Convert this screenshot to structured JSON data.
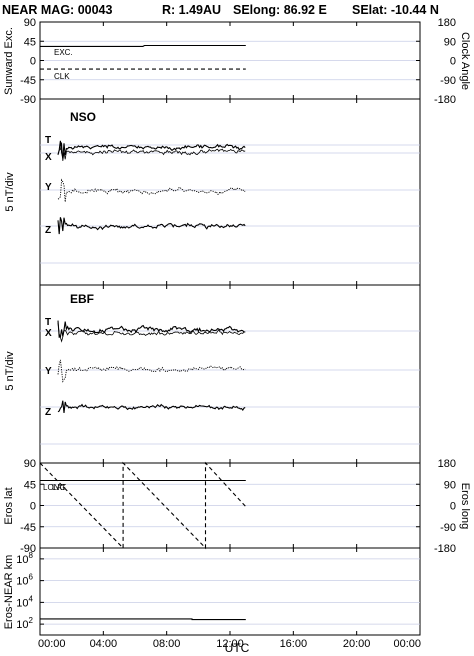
{
  "header": {
    "title": "NEAR MAG: 00043",
    "distance": "R: 1.49AU",
    "selong": "SElong:   86.92 E",
    "selat": "SElat:  -10.44 N"
  },
  "x_axis": {
    "label": "UTC",
    "ticks": [
      "00:00",
      "04:00",
      "08:00",
      "12:00",
      "16:00",
      "20:00",
      "00:00"
    ],
    "range_hours": [
      0,
      24
    ],
    "data_end_hour": 13.0
  },
  "panels": {
    "excursion": {
      "left_label": "Sunward Exc.",
      "right_label": "Clock Angle",
      "left_ticks": [
        "90",
        "45",
        "0",
        "-45",
        "-90"
      ],
      "right_ticks": [
        "180",
        "90",
        "0",
        "-90",
        "-180"
      ],
      "legend": [
        "EXC.",
        "CLK"
      ]
    },
    "nso": {
      "name": "NSO",
      "ylabel": "5 nT/div",
      "components": [
        "T",
        "X",
        "Y",
        "Z"
      ]
    },
    "ebf": {
      "name": "EBF",
      "ylabel": "5 nT/div",
      "components": [
        "T",
        "X",
        "Y",
        "Z"
      ]
    },
    "eros": {
      "left_label": "Eros lat",
      "right_label": "Eros long",
      "left_ticks": [
        "90",
        "45",
        "0",
        "-45",
        "-90"
      ],
      "right_ticks": [
        "180",
        "90",
        "0",
        "-90",
        "-180"
      ],
      "legend": [
        "LONG",
        "LAT"
      ]
    },
    "distance": {
      "ylabel": "Eros-NEAR km",
      "ticks": [
        "10^8",
        "10^6",
        "10^4",
        "10^2"
      ]
    }
  },
  "chart_data": [
    {
      "type": "line",
      "title": "",
      "xlabel": "UTC",
      "ylabel": "Sunward Exc.",
      "ylim": [
        -90,
        90
      ],
      "y2label": "Clock Angle",
      "y2lim": [
        -180,
        180
      ],
      "series": [
        {
          "name": "EXC.",
          "x": [
            0,
            6.5,
            6.6,
            13.0
          ],
          "values": [
            33,
            33,
            35,
            35
          ]
        },
        {
          "name": "CLK",
          "x": [
            0,
            13.0
          ],
          "values": [
            -40,
            -40
          ],
          "axis": "right"
        }
      ]
    },
    {
      "type": "line",
      "title": "NSO",
      "ylabel": "5 nT/div",
      "series": [
        {
          "name": "T",
          "x": [
            0,
            13.0
          ]
        },
        {
          "name": "X",
          "x": [
            0,
            13.0
          ]
        },
        {
          "name": "Y",
          "x": [
            0,
            13.0
          ]
        },
        {
          "name": "Z",
          "x": [
            0,
            13.0
          ]
        }
      ]
    },
    {
      "type": "line",
      "title": "EBF",
      "ylabel": "5 nT/div",
      "series": [
        {
          "name": "T",
          "x": [
            0,
            13.0
          ]
        },
        {
          "name": "X",
          "x": [
            0,
            13.0
          ]
        },
        {
          "name": "Y",
          "x": [
            0,
            13.0
          ]
        },
        {
          "name": "Z",
          "x": [
            0,
            13.0
          ]
        }
      ]
    },
    {
      "type": "line",
      "xlabel": "UTC",
      "ylabel": "Eros lat",
      "ylim": [
        -90,
        90
      ],
      "y2label": "Eros long",
      "y2lim": [
        -180,
        180
      ],
      "series": [
        {
          "name": "LAT",
          "x": [
            0,
            13.0
          ],
          "values": [
            53,
            53
          ]
        },
        {
          "name": "LONG",
          "axis": "right",
          "x": [
            0,
            5.25,
            5.25,
            10.45,
            10.45,
            13.0
          ],
          "values": [
            180,
            -180,
            180,
            -180,
            180,
            -5
          ]
        }
      ]
    },
    {
      "type": "line",
      "ylabel": "Eros-NEAR km",
      "yscale": "log",
      "ylim": [
        10,
        1000000000
      ],
      "series": [
        {
          "name": "",
          "x": [
            0,
            9.6,
            9.6,
            13.0
          ],
          "values": [
            300,
            300,
            260,
            260
          ]
        }
      ]
    }
  ]
}
